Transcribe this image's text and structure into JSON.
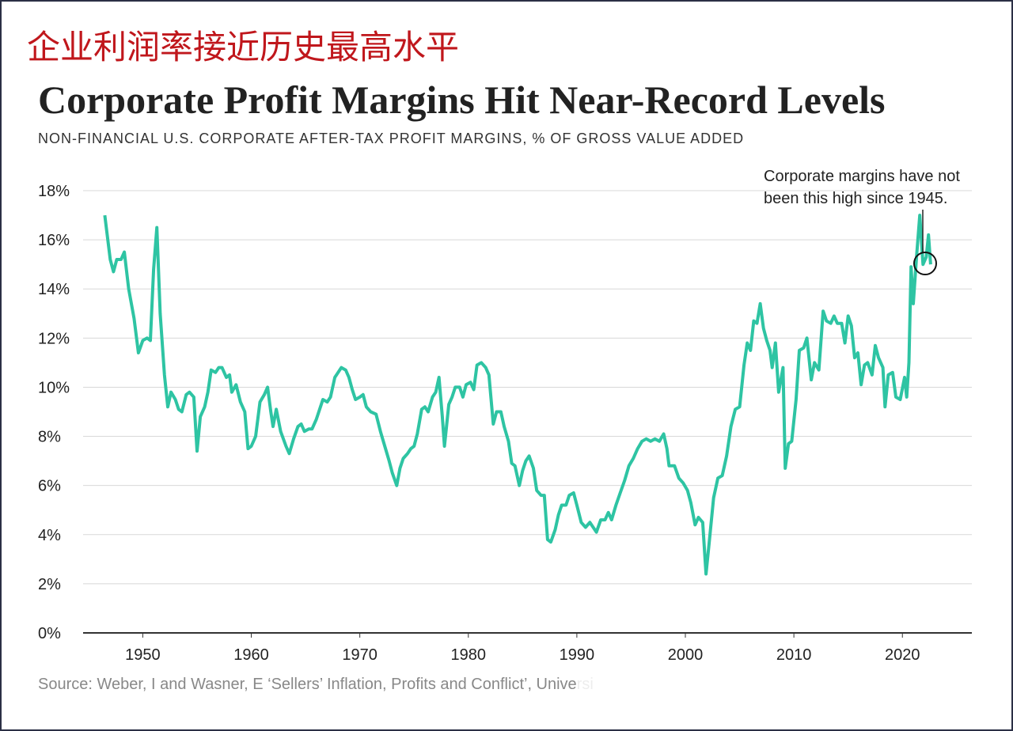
{
  "chart_data": {
    "type": "line",
    "header": "企业利润率接近历史最高水平",
    "title": "Corporate Profit Margins Hit Near-Record Levels",
    "subtitle": "NON-FINANCIAL U.S. CORPORATE AFTER-TAX PROFIT MARGINS, % OF GROSS VALUE ADDED",
    "annotation": [
      "Corporate margins have not",
      "been this high since 1945."
    ],
    "source": "Source: Weber, I and Wasner, E ‘Sellers’ Inflation, Profits and Conflict’, Universi",
    "x": [
      1946.5,
      1947,
      1947.3,
      1947.6,
      1948,
      1948.3,
      1948.7,
      1949.2,
      1949.6,
      1950,
      1950.4,
      1950.7,
      1951,
      1951.3,
      1951.6,
      1952,
      1952.3,
      1952.6,
      1953,
      1953.3,
      1953.6,
      1954,
      1954.3,
      1954.7,
      1955,
      1955.3,
      1955.7,
      1956,
      1956.3,
      1956.7,
      1957,
      1957.3,
      1957.7,
      1958,
      1958.2,
      1958.6,
      1959,
      1959.4,
      1959.7,
      1960,
      1960.4,
      1960.8,
      1961.2,
      1961.5,
      1961.8,
      1962,
      1962.3,
      1962.7,
      1963.2,
      1963.5,
      1963.9,
      1964.3,
      1964.6,
      1964.9,
      1965.3,
      1965.6,
      1966,
      1966.3,
      1966.6,
      1967,
      1967.3,
      1967.7,
      1968,
      1968.3,
      1968.7,
      1969,
      1969.3,
      1969.6,
      1970,
      1970.3,
      1970.6,
      1971,
      1971.5,
      1971.9,
      1972.3,
      1972.7,
      1973,
      1973.4,
      1973.7,
      1974,
      1974.4,
      1974.7,
      1975,
      1975.3,
      1975.7,
      1976,
      1976.3,
      1976.7,
      1977,
      1977.3,
      1977.6,
      1977.8,
      1978.2,
      1978.5,
      1978.8,
      1979.2,
      1979.5,
      1979.8,
      1980.2,
      1980.5,
      1980.8,
      1981.2,
      1981.6,
      1981.9,
      1982.3,
      1982.6,
      1983,
      1983.3,
      1983.7,
      1984,
      1984.3,
      1984.7,
      1985,
      1985.3,
      1985.6,
      1986,
      1986.3,
      1986.7,
      1987,
      1987.3,
      1987.6,
      1988,
      1988.3,
      1988.6,
      1989,
      1989.3,
      1989.7,
      1990,
      1990.4,
      1990.8,
      1991.2,
      1991.5,
      1991.8,
      1992.2,
      1992.6,
      1992.9,
      1993.2,
      1993.6,
      1994,
      1994.4,
      1994.8,
      1995.2,
      1995.6,
      1996,
      1996.4,
      1996.8,
      1997.2,
      1997.6,
      1998,
      1998.3,
      1998.5,
      1999,
      1999.4,
      1999.8,
      2000.2,
      2000.5,
      2000.9,
      2001.2,
      2001.6,
      2001.9,
      2002.2,
      2002.6,
      2003,
      2003.4,
      2003.8,
      2004.2,
      2004.6,
      2005,
      2005.4,
      2005.7,
      2006,
      2006.3,
      2006.6,
      2006.9,
      2007.2,
      2007.5,
      2007.8,
      2008,
      2008.3,
      2008.6,
      2009,
      2009.2,
      2009.5,
      2009.8,
      2010.2,
      2010.5,
      2010.9,
      2011.2,
      2011.6,
      2011.9,
      2012.3,
      2012.7,
      2013,
      2013.4,
      2013.7,
      2014,
      2014.4,
      2014.7,
      2015,
      2015.3,
      2015.6,
      2015.9,
      2016.2,
      2016.5,
      2016.8,
      2017.2,
      2017.5,
      2017.8,
      2018.2,
      2018.4,
      2018.7,
      2019.1,
      2019.4,
      2019.8,
      2020.2,
      2020.4,
      2020.6,
      2020.8,
      2021,
      2021.3,
      2021.6,
      2021.9,
      2022.2,
      2022.4,
      2022.6
    ],
    "series": [
      {
        "color": "#2ec4a3",
        "values": [
          17.0,
          15.2,
          14.7,
          15.2,
          15.2,
          15.5,
          14.0,
          12.8,
          11.4,
          11.9,
          12.0,
          11.9,
          14.8,
          16.5,
          13.0,
          10.5,
          9.2,
          9.8,
          9.5,
          9.1,
          9.0,
          9.7,
          9.8,
          9.6,
          7.4,
          8.8,
          9.2,
          9.8,
          10.7,
          10.6,
          10.8,
          10.8,
          10.4,
          10.5,
          9.8,
          10.1,
          9.4,
          9.0,
          7.5,
          7.6,
          8.0,
          9.4,
          9.7,
          10.0,
          9.0,
          8.4,
          9.1,
          8.2,
          7.6,
          7.3,
          7.9,
          8.4,
          8.5,
          8.2,
          8.3,
          8.3,
          8.7,
          9.1,
          9.5,
          9.4,
          9.6,
          10.4,
          10.6,
          10.8,
          10.7,
          10.4,
          9.9,
          9.5,
          9.6,
          9.7,
          9.2,
          9.0,
          8.9,
          8.2,
          7.6,
          7.0,
          6.5,
          6.0,
          6.7,
          7.1,
          7.3,
          7.5,
          7.6,
          8.1,
          9.1,
          9.2,
          9.0,
          9.6,
          9.8,
          10.4,
          8.8,
          7.6,
          9.3,
          9.6,
          10.0,
          10.0,
          9.6,
          10.1,
          10.2,
          9.9,
          10.9,
          11.0,
          10.8,
          10.5,
          8.5,
          9.0,
          9.0,
          8.4,
          7.8,
          6.9,
          6.8,
          6.0,
          6.6,
          7.0,
          7.2,
          6.7,
          5.8,
          5.6,
          5.6,
          3.8,
          3.7,
          4.2,
          4.8,
          5.2,
          5.2,
          5.6,
          5.7,
          5.2,
          4.5,
          4.3,
          4.5,
          4.3,
          4.1,
          4.6,
          4.6,
          4.9,
          4.6,
          5.2,
          5.7,
          6.2,
          6.8,
          7.1,
          7.5,
          7.8,
          7.9,
          7.8,
          7.9,
          7.8,
          8.1,
          7.5,
          6.8,
          6.8,
          6.3,
          6.1,
          5.8,
          5.3,
          4.4,
          4.7,
          4.5,
          2.4,
          3.7,
          5.5,
          6.3,
          6.4,
          7.2,
          8.4,
          9.1,
          9.2,
          10.9,
          11.8,
          11.5,
          12.7,
          12.6,
          13.4,
          12.4,
          11.9,
          11.5,
          10.8,
          11.8,
          9.8,
          10.8,
          6.7,
          7.7,
          7.8,
          9.5,
          11.5,
          11.6,
          12.0,
          10.3,
          11.0,
          10.7,
          13.1,
          12.7,
          12.6,
          12.9,
          12.6,
          12.6,
          11.8,
          12.9,
          12.5,
          11.2,
          11.4,
          10.1,
          10.9,
          11.0,
          10.5,
          11.7,
          11.2,
          10.8,
          9.2,
          10.5,
          10.6,
          9.6,
          9.5,
          10.4,
          9.6,
          11.0,
          14.9,
          13.4,
          15.3,
          17.0,
          15.0,
          15.3,
          16.2,
          15.0
        ]
      }
    ],
    "xlim": [
      1944.5,
      2026.4
    ],
    "ylim": [
      0,
      18
    ],
    "xticks": [
      1950,
      1960,
      1970,
      1980,
      1990,
      2000,
      2010,
      2020
    ],
    "yticks": [
      {
        "value": 0,
        "label": "0%"
      },
      {
        "value": 2,
        "label": "2%"
      },
      {
        "value": 4,
        "label": "4%"
      },
      {
        "value": 6,
        "label": "6%"
      },
      {
        "value": 8,
        "label": "8%"
      },
      {
        "value": 10,
        "label": "10%"
      },
      {
        "value": 12,
        "label": "12%"
      },
      {
        "value": 14,
        "label": "14%"
      },
      {
        "value": 16,
        "label": "16%"
      },
      {
        "value": 18,
        "label": "18%"
      }
    ],
    "grid": true
  }
}
